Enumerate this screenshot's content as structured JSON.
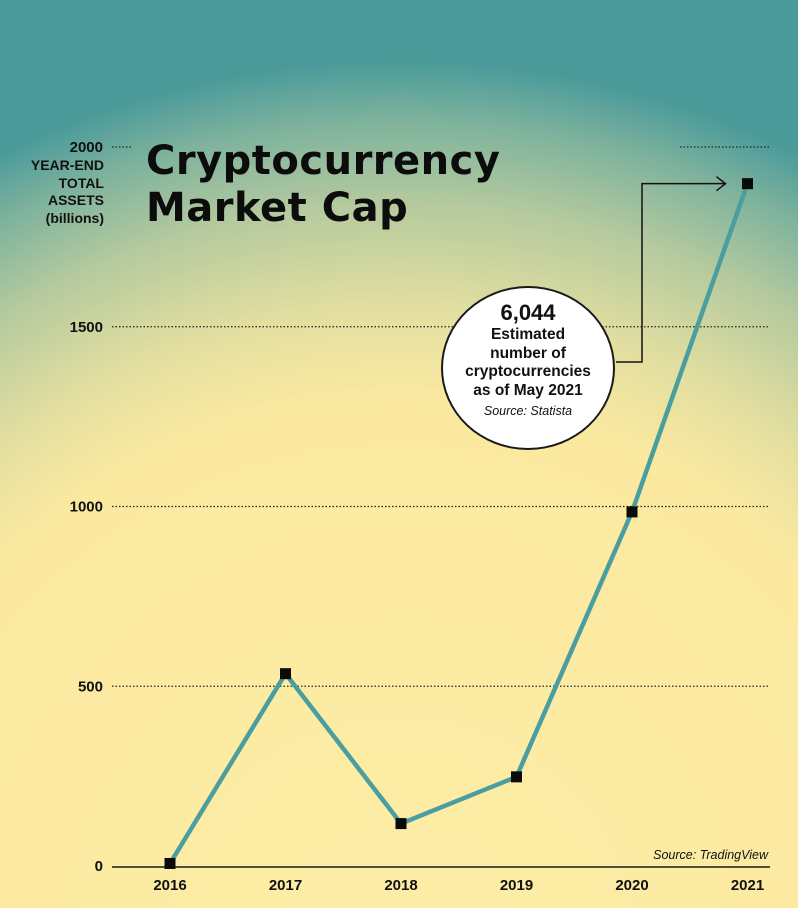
{
  "chart_data": {
    "type": "line",
    "title": "Cryptocurrency\nMarket Cap",
    "ylabel": "YEAR-END\nTOTAL\nASSETS\n(billions)",
    "xlabel": "",
    "categories": [
      "2016",
      "2017",
      "2018",
      "2019",
      "2020",
      "2021"
    ],
    "series": [
      {
        "values": [
          7,
          535,
          118,
          248,
          985,
          1898
        ]
      }
    ],
    "ylim": [
      0,
      2000
    ],
    "yticks": [
      0,
      500,
      1000,
      1500,
      2000
    ],
    "grid": true,
    "line_color": "#4b9ea0",
    "marker_color": "#0a0a0a",
    "source": "Source: TradingView"
  },
  "callout": {
    "value": "6,044",
    "text": "Estimated\nnumber of\ncryptocurrencies\nas of May 2021",
    "source": "Source: Statista"
  },
  "colors": {
    "background_top": "#4a9a9a",
    "background_bottom": "#fdeba0"
  }
}
